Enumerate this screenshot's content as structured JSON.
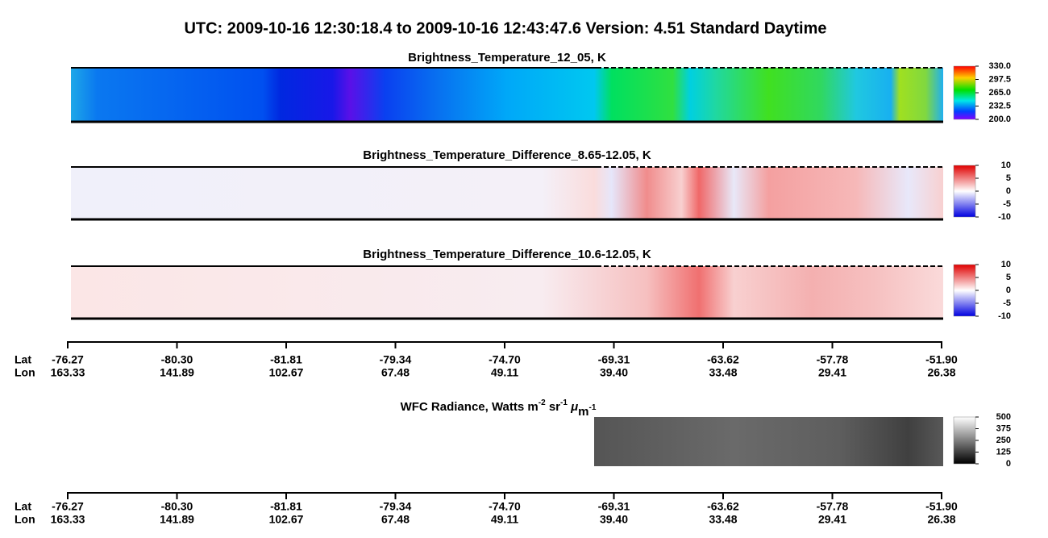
{
  "title": "UTC:  2009-10-16   12:30:18.4  to  2009-10-16   12:43:47.6    Version: 4.51  Standard Daytime",
  "panels": [
    {
      "title": "Brightness_Temperature_12_05, K",
      "colorbar_ticks": [
        "330.0",
        "297.5",
        "265.0",
        "232.5",
        "200.0"
      ]
    },
    {
      "title": "Brightness_Temperature_Difference_8.65-12.05, K",
      "colorbar_ticks": [
        "10",
        "5",
        "0",
        "-5",
        "-10"
      ]
    },
    {
      "title": "Brightness_Temperature_Difference_10.6-12.05, K",
      "colorbar_ticks": [
        "10",
        "5",
        "0",
        "-5",
        "-10"
      ]
    }
  ],
  "wfc": {
    "title_parts": [
      "WFC Radiance, Watts m",
      "-2",
      " sr",
      "-1",
      " ",
      "μ",
      "m",
      "-1"
    ],
    "colorbar_ticks": [
      "500",
      "375",
      "250",
      "125",
      "0"
    ]
  },
  "axes": [
    {
      "lat_label": "Lat",
      "lon_label": "Lon",
      "lat": [
        "-76.27",
        "-80.30",
        "-81.81",
        "-79.34",
        "-74.70",
        "-69.31",
        "-63.62",
        "-57.78",
        "-51.90"
      ],
      "lon": [
        "163.33",
        "141.89",
        "102.67",
        "67.48",
        "49.11",
        "39.40",
        "33.48",
        "29.41",
        "26.38"
      ]
    },
    {
      "lat_label": "Lat",
      "lon_label": "Lon",
      "lat": [
        "-76.27",
        "-80.30",
        "-81.81",
        "-79.34",
        "-74.70",
        "-69.31",
        "-63.62",
        "-57.78",
        "-51.90"
      ],
      "lon": [
        "163.33",
        "141.89",
        "102.67",
        "67.48",
        "49.11",
        "39.40",
        "33.48",
        "29.41",
        "26.38"
      ]
    }
  ]
}
